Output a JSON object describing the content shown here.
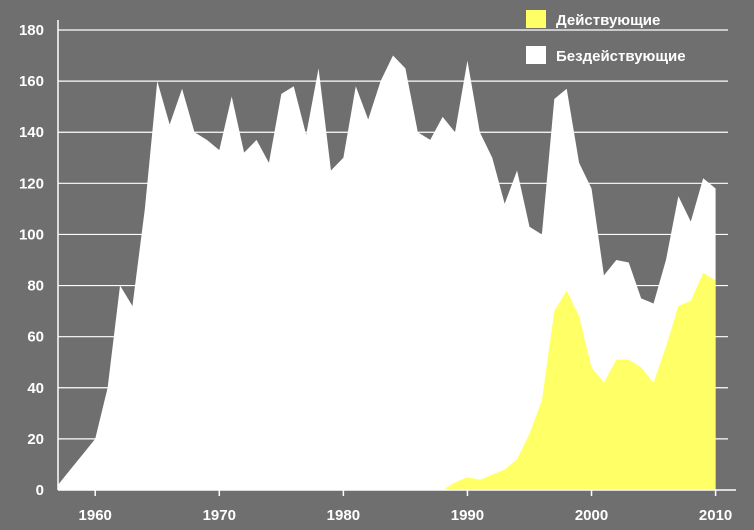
{
  "chart_data": {
    "type": "area",
    "title": "",
    "xlabel": "",
    "ylabel": "",
    "xlim": [
      1957,
      2011
    ],
    "ylim": [
      0,
      180
    ],
    "x_ticks": [
      1960,
      1970,
      1980,
      1990,
      2000,
      2010
    ],
    "y_ticks": [
      0,
      20,
      40,
      60,
      80,
      100,
      120,
      140,
      160,
      180
    ],
    "grid": "horizontal",
    "legend_position": "top-right",
    "background": "#6f6f6f",
    "x": [
      1957,
      1958,
      1959,
      1960,
      1961,
      1962,
      1963,
      1964,
      1965,
      1966,
      1967,
      1968,
      1969,
      1970,
      1971,
      1972,
      1973,
      1974,
      1975,
      1976,
      1977,
      1978,
      1979,
      1980,
      1981,
      1982,
      1983,
      1984,
      1985,
      1986,
      1987,
      1988,
      1989,
      1990,
      1991,
      1992,
      1993,
      1994,
      1995,
      1996,
      1997,
      1998,
      1999,
      2000,
      2001,
      2002,
      2003,
      2004,
      2005,
      2006,
      2007,
      2008,
      2009,
      2010
    ],
    "series": [
      {
        "name": "Бездействующие",
        "color": "#ffffff",
        "values": [
          2,
          8,
          14,
          20,
          40,
          80,
          72,
          110,
          160,
          143,
          157,
          140,
          137,
          133,
          154,
          132,
          137,
          128,
          155,
          158,
          139,
          165,
          125,
          130,
          158,
          145,
          160,
          170,
          165,
          140,
          137,
          146,
          140,
          168,
          140,
          130,
          112,
          125,
          103,
          100,
          153,
          157,
          128,
          118,
          84,
          90,
          89,
          75,
          73,
          90,
          115,
          105,
          122,
          118
        ]
      },
      {
        "name": "Действующие",
        "color": "#ffff66",
        "values": [
          0,
          0,
          0,
          0,
          0,
          0,
          0,
          0,
          0,
          0,
          0,
          0,
          0,
          0,
          0,
          0,
          0,
          0,
          0,
          0,
          0,
          0,
          0,
          0,
          0,
          0,
          0,
          0,
          0,
          0,
          0,
          0,
          3,
          5,
          4,
          6,
          8,
          12,
          22,
          35,
          70,
          78,
          68,
          48,
          42,
          51,
          51,
          48,
          42,
          56,
          72,
          74,
          85,
          82
        ]
      }
    ]
  }
}
